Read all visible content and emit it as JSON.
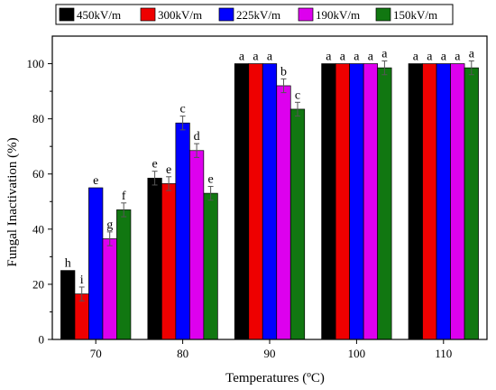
{
  "chart_data": {
    "type": "bar",
    "xlabel": "Temperatures (ºC)",
    "ylabel": "Fungal Inactivation (%)",
    "categories": [
      "70",
      "80",
      "90",
      "100",
      "110"
    ],
    "ylim": [
      0,
      110
    ],
    "yticks": [
      0,
      20,
      40,
      60,
      80,
      100
    ],
    "grid": false,
    "legend_position": "top",
    "series": [
      {
        "name": "450kV/m",
        "color": "#000000",
        "values": [
          25,
          58.5,
          100,
          100,
          100
        ],
        "errors": [
          0,
          2.5,
          0,
          0,
          0
        ],
        "labels": [
          "h",
          "e",
          "a",
          "a",
          "a"
        ]
      },
      {
        "name": "300kV/m",
        "color": "#ee0000",
        "values": [
          16.5,
          56.5,
          100,
          100,
          100
        ],
        "errors": [
          2.5,
          2.5,
          0,
          0,
          0
        ],
        "labels": [
          "i",
          "e",
          "a",
          "a",
          "a"
        ]
      },
      {
        "name": "225kV/m",
        "color": "#0000ff",
        "values": [
          55,
          78.5,
          100,
          100,
          100
        ],
        "errors": [
          0,
          2.5,
          0,
          0,
          0
        ],
        "labels": [
          "e",
          "c",
          "a",
          "a",
          "a"
        ]
      },
      {
        "name": "190kV/m",
        "color": "#dd00ee",
        "values": [
          36.5,
          68.5,
          92,
          100,
          100
        ],
        "errors": [
          2.5,
          2.5,
          2.5,
          0,
          0
        ],
        "labels": [
          "g",
          "d",
          "b",
          "a",
          "a"
        ]
      },
      {
        "name": "150kV/m",
        "color": "#117711",
        "values": [
          47,
          53,
          83.5,
          98.5,
          98.5
        ],
        "errors": [
          2.5,
          2.5,
          2.5,
          2.5,
          2.5
        ],
        "labels": [
          "f",
          "e",
          "c",
          "a",
          "a"
        ]
      }
    ]
  }
}
